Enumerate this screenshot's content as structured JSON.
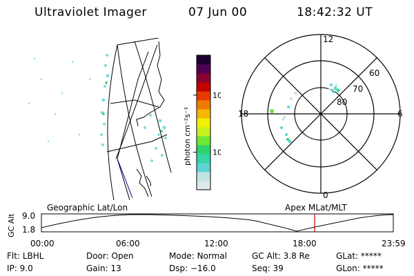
{
  "header": {
    "instrument": "Ultraviolet Imager",
    "date": "07 Jun 00",
    "time": "18:42:32 UT"
  },
  "colorbar": {
    "unit_label": "photon cm⁻²s⁻¹",
    "ticks": [
      {
        "label": "100",
        "value": 100
      },
      {
        "label": "10",
        "value": 10
      }
    ],
    "colors": [
      "#dfe8ea",
      "#bfe3e3",
      "#5fd3d3",
      "#33d6a5",
      "#2dd36b",
      "#6ee834",
      "#c8f020",
      "#f2f000",
      "#f5b800",
      "#f07a00",
      "#e83800",
      "#c40000",
      "#8a0030",
      "#500050",
      "#1a0030"
    ]
  },
  "polar_plot": {
    "mlt_labels": {
      "top": "12",
      "left": "18",
      "right": "6",
      "bottom": "0"
    },
    "latitude_labels": [
      "60",
      "70",
      "80"
    ]
  },
  "timeline": {
    "left_label": "Geographic Lat/Lon",
    "right_label": "Apex MLat/MLT",
    "axis_title": "GC Alt",
    "y_ticks": [
      "9.0",
      "1.8"
    ],
    "x_ticks": [
      "00:00",
      "06:00",
      "12:00",
      "18:00",
      "23:59"
    ],
    "marker_color": "#c00000"
  },
  "footer": {
    "row1": [
      {
        "label": "Flt:",
        "value": "LBHL"
      },
      {
        "label": "Door:",
        "value": "Open"
      },
      {
        "label": "Mode:",
        "value": "Normal"
      },
      {
        "label": "GC Alt:",
        "value": "3.8 Re"
      },
      {
        "label": "GLat:",
        "value": "*****"
      }
    ],
    "row2": [
      {
        "label": "IP:",
        "value": "9.0"
      },
      {
        "label": "Gain:",
        "value": "13"
      },
      {
        "label": "Dsp:",
        "value": "−16.0"
      },
      {
        "label": "Seq:",
        "value": "39"
      },
      {
        "label": "GLon:",
        "value": "*****"
      }
    ]
  }
}
